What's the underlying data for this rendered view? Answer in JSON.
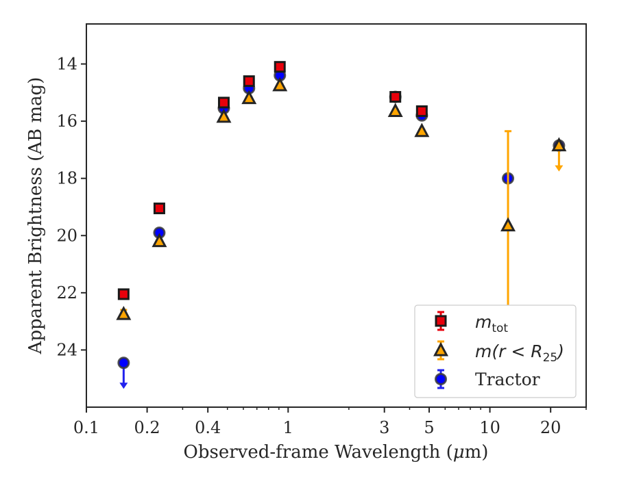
{
  "chart_data": {
    "type": "scatter",
    "xlabel_pre": "Observed-frame Wavelength (",
    "xlabel_mu": "μ",
    "xlabel_post": "m)",
    "ylabel": "Apparent Brightness (AB mag)",
    "xscale": "log",
    "xlim": [
      0.1,
      30
    ],
    "ylim": [
      26,
      12.6
    ],
    "y_inverted": true,
    "grid": false,
    "legend_position": "lower-right",
    "xticks": [
      {
        "value": 0.1,
        "label": "0.1"
      },
      {
        "value": 0.2,
        "label": "0.2"
      },
      {
        "value": 0.4,
        "label": "0.4"
      },
      {
        "value": 1,
        "label": "1"
      },
      {
        "value": 3,
        "label": "3"
      },
      {
        "value": 5,
        "label": "5"
      },
      {
        "value": 10,
        "label": "10"
      },
      {
        "value": 20,
        "label": "20"
      }
    ],
    "yticks": [
      {
        "value": 14,
        "label": "14"
      },
      {
        "value": 16,
        "label": "16"
      },
      {
        "value": 18,
        "label": "18"
      },
      {
        "value": 20,
        "label": "20"
      },
      {
        "value": 22,
        "label": "22"
      },
      {
        "value": 24,
        "label": "24"
      }
    ],
    "series": [
      {
        "key": "mtot",
        "legend_main": "m",
        "legend_sub": "tot",
        "legend_rest": "",
        "marker": "square",
        "color": "#e8000b",
        "edge": "#1a1a1a",
        "errcolor": "#e8000b",
        "points": [
          {
            "x": 0.153,
            "y": 22.05,
            "err": 0.05
          },
          {
            "x": 0.23,
            "y": 19.05,
            "err": 0.05
          },
          {
            "x": 0.48,
            "y": 15.35,
            "err": 0.05
          },
          {
            "x": 0.64,
            "y": 14.6,
            "err": 0.05
          },
          {
            "x": 0.91,
            "y": 14.1,
            "err": 0.05
          },
          {
            "x": 3.4,
            "y": 15.15,
            "err": 0.05
          },
          {
            "x": 4.6,
            "y": 15.65,
            "err": 0.05
          }
        ]
      },
      {
        "key": "mr25",
        "legend_main": "m",
        "legend_sub": "25",
        "legend_rest": "(r < R",
        "legend_close": ")",
        "marker": "triangle",
        "color": "#ffa500",
        "edge": "#262626",
        "errcolor": "#ffa500",
        "points": [
          {
            "x": 0.153,
            "y": 22.75,
            "err": 0.15
          },
          {
            "x": 0.23,
            "y": 20.2,
            "err": 0.05
          },
          {
            "x": 0.48,
            "y": 15.85,
            "err": 0.05
          },
          {
            "x": 0.64,
            "y": 15.2,
            "err": 0.05
          },
          {
            "x": 0.91,
            "y": 14.75,
            "err": 0.05
          },
          {
            "x": 3.4,
            "y": 15.65,
            "err": 0.05
          },
          {
            "x": 4.6,
            "y": 16.35,
            "err": 0.05
          },
          {
            "x": 12.3,
            "y": 19.65,
            "err_low": 3.3,
            "err_high": 3.3
          },
          {
            "x": 22,
            "y": 16.85,
            "upper_limit": true
          }
        ]
      },
      {
        "key": "tractor",
        "legend_main": "Tractor",
        "marker": "circle",
        "color": "#0000ff",
        "edge": "#3a3a3a",
        "errcolor": "#2222ee",
        "points": [
          {
            "x": 0.153,
            "y": 24.45,
            "upper_limit": true
          },
          {
            "x": 0.23,
            "y": 19.9,
            "err": 0.05
          },
          {
            "x": 0.48,
            "y": 15.55,
            "err": 0.05
          },
          {
            "x": 0.64,
            "y": 14.85,
            "err": 0.05
          },
          {
            "x": 0.91,
            "y": 14.4,
            "err": 0.05
          },
          {
            "x": 3.4,
            "y": 15.15,
            "err": 0.05
          },
          {
            "x": 4.6,
            "y": 15.8,
            "err": 0.05
          },
          {
            "x": 12.3,
            "y": 18.0,
            "err": 0.05
          },
          {
            "x": 22,
            "y": 16.85,
            "err": 0.05
          }
        ]
      }
    ]
  }
}
